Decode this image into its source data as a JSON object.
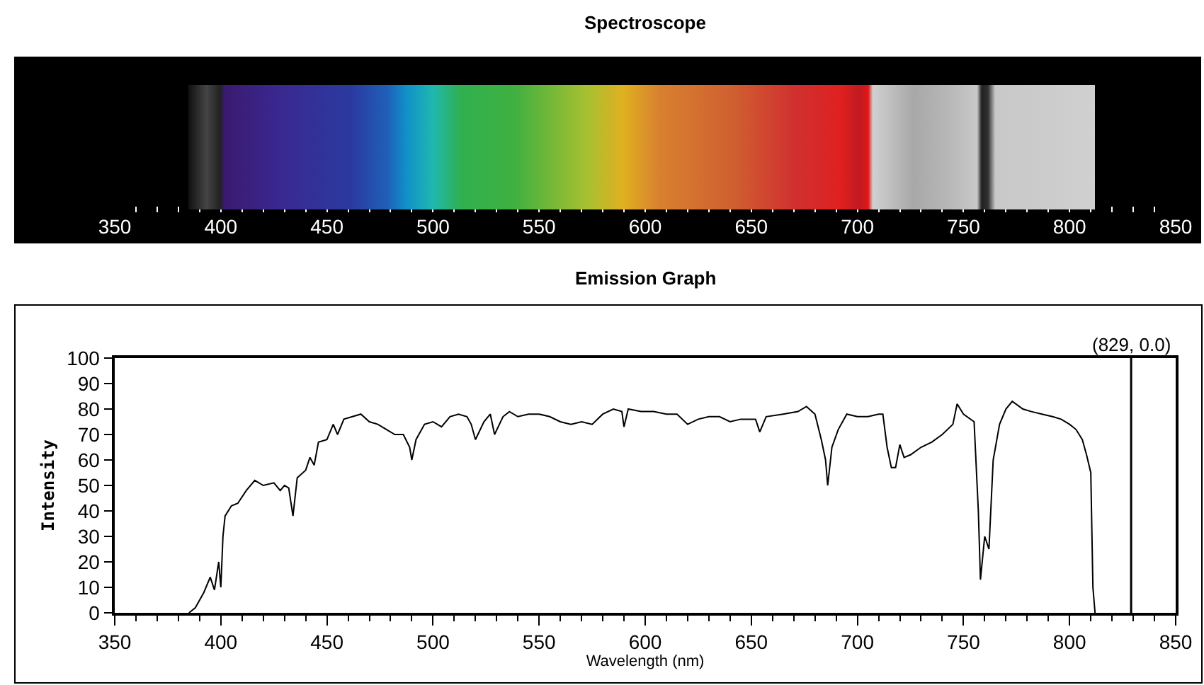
{
  "chart_data": {
    "type": "line",
    "title": "Spectroscope",
    "subtitle": "Emission Graph",
    "xlabel": "Wavelength (nm)",
    "ylabel": "Intensity",
    "xlim": [
      350,
      850
    ],
    "ylim": [
      0,
      100
    ],
    "xticks": [
      350,
      400,
      450,
      500,
      550,
      600,
      650,
      700,
      750,
      800,
      850
    ],
    "yticks": [
      0,
      10,
      20,
      30,
      40,
      50,
      60,
      70,
      80,
      90,
      100
    ],
    "x2lim": [
      350,
      850
    ],
    "x2ticks": [
      350,
      400,
      450,
      500,
      550,
      600,
      650,
      700,
      750,
      800,
      850
    ],
    "grid": false,
    "marker": "none",
    "line_style": "solid",
    "ref_lines": [
      {
        "axis": "x",
        "value": 829,
        "label": "(829, 0.0)",
        "color": "#000000"
      }
    ],
    "series": [
      {
        "color": "#000000",
        "x": [
          385,
          388,
          392,
          395,
          397,
          399,
          400,
          401,
          402,
          405,
          408,
          412,
          416,
          420,
          425,
          428,
          430,
          432,
          434,
          436,
          440,
          442,
          444,
          446,
          450,
          453,
          455,
          458,
          462,
          466,
          470,
          474,
          478,
          482,
          486,
          489,
          490,
          492,
          496,
          500,
          504,
          508,
          512,
          516,
          518,
          520,
          524,
          527,
          529,
          533,
          536,
          540,
          545,
          550,
          555,
          560,
          565,
          570,
          575,
          580,
          585,
          589,
          590,
          592,
          598,
          604,
          610,
          615,
          620,
          625,
          630,
          635,
          640,
          645,
          652,
          654,
          657,
          665,
          672,
          676,
          680,
          683,
          685,
          686,
          688,
          691,
          695,
          700,
          705,
          710,
          712,
          714,
          716,
          718,
          720,
          722,
          725,
          730,
          735,
          740,
          745,
          747,
          750,
          755,
          757,
          758,
          760,
          762,
          764,
          767,
          770,
          773,
          778,
          782,
          787,
          792,
          796,
          800,
          803,
          806,
          808,
          810,
          811,
          812
        ],
        "values": [
          0,
          2,
          8,
          14,
          9,
          20,
          10,
          30,
          38,
          42,
          43,
          48,
          52,
          50,
          51,
          48,
          50,
          49,
          38,
          53,
          56,
          61,
          58,
          67,
          68,
          74,
          70,
          76,
          77,
          78,
          75,
          74,
          72,
          70,
          70,
          65,
          60,
          68,
          74,
          75,
          73,
          77,
          78,
          77,
          74,
          68,
          75,
          78,
          70,
          77,
          79,
          77,
          78,
          78,
          77,
          75,
          74,
          75,
          74,
          78,
          80,
          79,
          73,
          80,
          79,
          79,
          78,
          78,
          74,
          76,
          77,
          77,
          75,
          76,
          76,
          71,
          77,
          78,
          79,
          81,
          78,
          68,
          60,
          50,
          65,
          72,
          78,
          77,
          77,
          78,
          78,
          65,
          57,
          57,
          66,
          61,
          62,
          65,
          67,
          70,
          74,
          82,
          78,
          75,
          40,
          13,
          30,
          25,
          60,
          74,
          80,
          83,
          80,
          79,
          78,
          77,
          76,
          74,
          72,
          68,
          62,
          55,
          10,
          0
        ]
      }
    ]
  }
}
